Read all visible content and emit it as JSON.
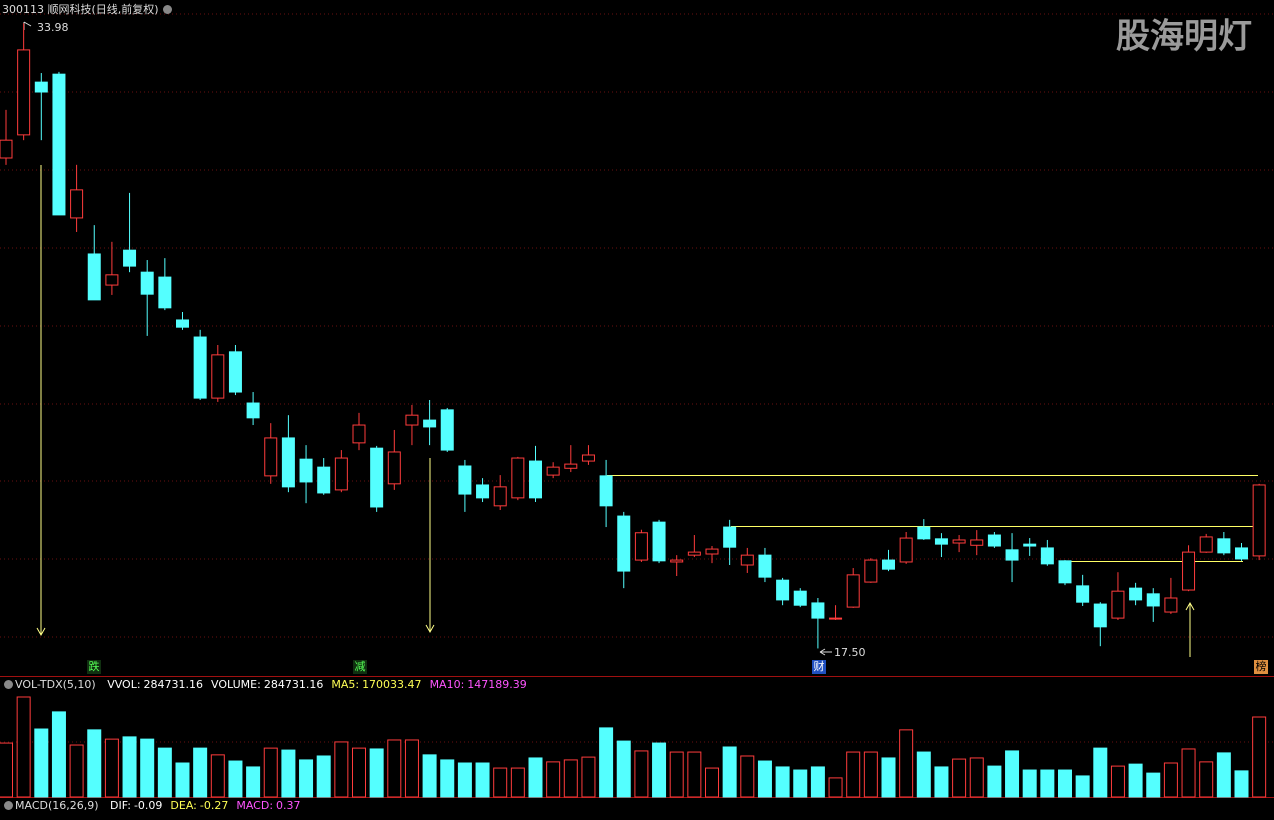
{
  "chart_data": [
    {
      "type": "candlestick",
      "title": "300113 顺网科技(日线,前复权)",
      "watermark": "股海明灯",
      "annotations": {
        "high": "33.98",
        "low": "17.50"
      },
      "event_markers": [
        "跌",
        "减",
        "财",
        "榜"
      ],
      "up_color": "#ff3c3c",
      "down_color": "#54ffff",
      "ylim": [
        16.8,
        34.2
      ],
      "open": [
        30.43,
        31.04,
        32.43,
        32.64,
        28.85,
        27.9,
        27.08,
        28.0,
        27.42,
        27.29,
        26.16,
        25.71,
        24.1,
        25.32,
        23.97,
        22.05,
        23.05,
        22.49,
        22.28,
        21.68,
        22.92,
        22.78,
        21.84,
        23.39,
        23.52,
        23.79,
        22.31,
        21.81,
        21.26,
        21.47,
        22.44,
        22.07,
        22.25,
        22.44,
        22.05,
        20.99,
        19.83,
        20.83,
        19.78,
        19.96,
        19.99,
        20.7,
        19.7,
        19.96,
        19.3,
        19.01,
        18.7,
        18.28,
        18.59,
        19.25,
        19.83,
        19.78,
        20.7,
        20.39,
        20.28,
        20.22,
        20.49,
        20.1,
        20.25,
        20.15,
        19.81,
        19.15,
        18.67,
        18.3,
        19.09,
        18.94,
        18.46,
        19.04,
        20.04,
        20.39,
        20.15,
        19.94
      ],
      "high": [
        31.7,
        33.98,
        32.67,
        32.7,
        30.25,
        28.66,
        28.22,
        29.51,
        27.74,
        27.79,
        26.37,
        25.9,
        25.5,
        25.5,
        24.26,
        23.44,
        23.65,
        22.86,
        22.52,
        22.73,
        23.71,
        22.84,
        23.26,
        23.92,
        24.05,
        23.84,
        22.47,
        21.99,
        22.07,
        22.55,
        22.84,
        22.41,
        22.86,
        22.86,
        22.47,
        21.1,
        20.63,
        20.89,
        19.96,
        20.49,
        20.2,
        20.89,
        20.15,
        20.15,
        19.36,
        19.09,
        18.83,
        18.64,
        19.62,
        19.88,
        20.1,
        20.57,
        20.91,
        20.54,
        20.49,
        20.62,
        20.57,
        20.54,
        20.41,
        20.36,
        19.83,
        19.44,
        18.72,
        19.51,
        19.23,
        19.09,
        19.36,
        20.22,
        20.52,
        20.57,
        20.28,
        21.84
      ],
      "low": [
        30.25,
        30.9,
        30.9,
        28.93,
        28.48,
        26.69,
        26.82,
        27.42,
        25.74,
        26.42,
        25.9,
        24.05,
        24.0,
        24.18,
        23.39,
        21.84,
        21.62,
        21.33,
        21.55,
        21.62,
        22.73,
        21.1,
        21.68,
        22.86,
        22.86,
        22.68,
        21.1,
        21.36,
        21.15,
        21.41,
        21.36,
        21.99,
        22.15,
        22.34,
        20.7,
        19.09,
        19.78,
        19.75,
        19.41,
        19.91,
        19.75,
        19.7,
        19.49,
        19.25,
        18.64,
        18.59,
        17.5,
        18.25,
        18.57,
        19.23,
        19.54,
        19.73,
        20.36,
        19.91,
        20.04,
        19.96,
        20.15,
        19.25,
        19.94,
        19.68,
        19.17,
        18.62,
        17.56,
        18.25,
        18.64,
        18.2,
        18.41,
        19.01,
        20.02,
        19.96,
        19.81,
        19.83
      ],
      "close": [
        30.9,
        33.28,
        32.17,
        28.93,
        29.59,
        26.69,
        27.35,
        27.58,
        26.84,
        26.48,
        25.97,
        24.1,
        25.24,
        24.26,
        23.58,
        23.05,
        21.76,
        21.89,
        21.6,
        22.52,
        23.39,
        21.23,
        22.68,
        23.65,
        23.34,
        22.73,
        21.57,
        21.47,
        21.76,
        22.52,
        21.47,
        22.28,
        22.36,
        22.6,
        21.26,
        19.54,
        20.55,
        19.81,
        19.83,
        20.04,
        20.12,
        20.17,
        19.96,
        19.38,
        18.78,
        18.64,
        18.3,
        18.3,
        19.44,
        19.83,
        19.59,
        20.41,
        20.39,
        20.25,
        20.36,
        20.36,
        20.2,
        19.83,
        20.2,
        19.73,
        19.23,
        18.72,
        18.07,
        19.01,
        18.78,
        18.62,
        18.83,
        20.04,
        20.44,
        20.02,
        19.86,
        21.81
      ]
    },
    {
      "type": "bar",
      "name": "VOL-TDX(5,10)",
      "legend": [
        {
          "label": "VVOL:",
          "value": 284731.16,
          "color": "#ffffff"
        },
        {
          "label": "VOLUME:",
          "value": 284731.16,
          "color": "#ffffff"
        },
        {
          "label": "MA5:",
          "value": 170033.47,
          "color": "#ffff55"
        },
        {
          "label": "MA10:",
          "value": 147189.39,
          "color": "#ff55ff"
        }
      ],
      "ylim": [
        0,
        388000
      ],
      "values": [
        192000,
        356000,
        242000,
        303000,
        185000,
        239000,
        206000,
        214000,
        206000,
        174000,
        121000,
        174000,
        150000,
        128000,
        107000,
        174000,
        167000,
        132000,
        146000,
        196000,
        174000,
        171000,
        203000,
        203000,
        150000,
        132000,
        121000,
        121000,
        103000,
        103000,
        139000,
        125000,
        132000,
        142000,
        246000,
        199000,
        164000,
        192000,
        160000,
        160000,
        103000,
        178000,
        146000,
        128000,
        107000,
        96000,
        107000,
        68000,
        160000,
        160000,
        139000,
        239000,
        160000,
        107000,
        135000,
        139000,
        110000,
        164000,
        96000,
        96000,
        96000,
        75000,
        174000,
        110000,
        117000,
        85000,
        121000,
        171000,
        125000,
        157000,
        93000,
        284731.16
      ]
    },
    {
      "type": "indicator",
      "name": "MACD(16,26,9)",
      "legend": [
        {
          "label": "DIF:",
          "value": -0.09,
          "color": "#ffffff"
        },
        {
          "label": "DEA:",
          "value": -0.27,
          "color": "#ffff55"
        },
        {
          "label": "MACD:",
          "value": 0.37,
          "color": "#ff55ff"
        }
      ]
    }
  ]
}
